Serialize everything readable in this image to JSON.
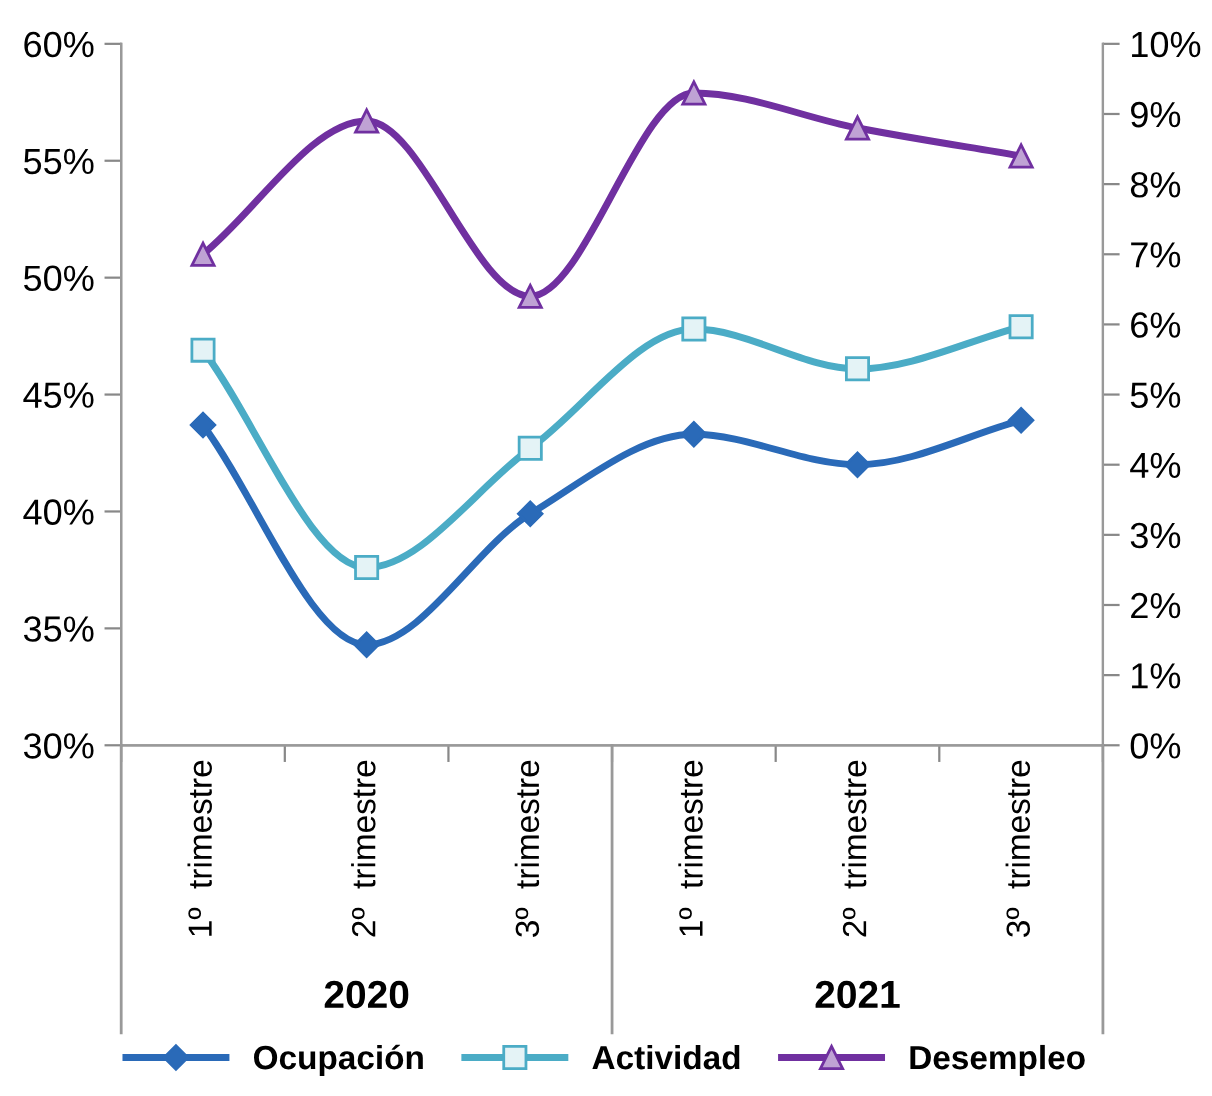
{
  "chart_data": {
    "type": "line",
    "categories": [
      "1º  trimestre",
      "2º  trimestre",
      "3º  trimestre",
      "1º  trimestre",
      "2º  trimestre",
      "3º  trimestre"
    ],
    "annotations": [
      "2020",
      "2021"
    ],
    "ylim": [
      0.3,
      0.6
    ],
    "yticks": [
      {
        "value": 0.3,
        "label": "30%"
      },
      {
        "value": 0.35,
        "label": "35%"
      },
      {
        "value": 0.4,
        "label": "40%"
      },
      {
        "value": 0.45,
        "label": "45%"
      },
      {
        "value": 0.5,
        "label": "50%"
      },
      {
        "value": 0.55,
        "label": "55%"
      },
      {
        "value": 0.6,
        "label": "60%"
      }
    ],
    "y2lim": [
      0,
      0.1
    ],
    "y2ticks": [
      {
        "value": 0,
        "label": "0%"
      },
      {
        "value": 0.01,
        "label": "1%"
      },
      {
        "value": 0.02,
        "label": "2%"
      },
      {
        "value": 0.03,
        "label": "3%"
      },
      {
        "value": 0.04,
        "label": "4%"
      },
      {
        "value": 0.05,
        "label": "5%"
      },
      {
        "value": 0.06,
        "label": "6%"
      },
      {
        "value": 0.07,
        "label": "7%"
      },
      {
        "value": 0.08,
        "label": "8%"
      },
      {
        "value": 0.09,
        "label": "9%"
      },
      {
        "value": 0.1,
        "label": "10%"
      }
    ],
    "grid": false,
    "legend": "bottom",
    "series": [
      {
        "name": "Ocupación",
        "color": "#2a6ab8",
        "marker": "diamond",
        "values": [
          0.437,
          0.343,
          0.399,
          0.433,
          0.42,
          0.439
        ]
      },
      {
        "name": "Actividad",
        "color": "#4bacc6",
        "marker": "square",
        "values": [
          0.469,
          0.376,
          0.427,
          0.478,
          0.461,
          0.479
        ]
      },
      {
        "name": "Desempleo",
        "color": "#7030a0",
        "marker": "triangle",
        "axis": "y2",
        "values": [
          0.07,
          0.089,
          0.064,
          0.093,
          0.088,
          0.084
        ]
      }
    ]
  }
}
